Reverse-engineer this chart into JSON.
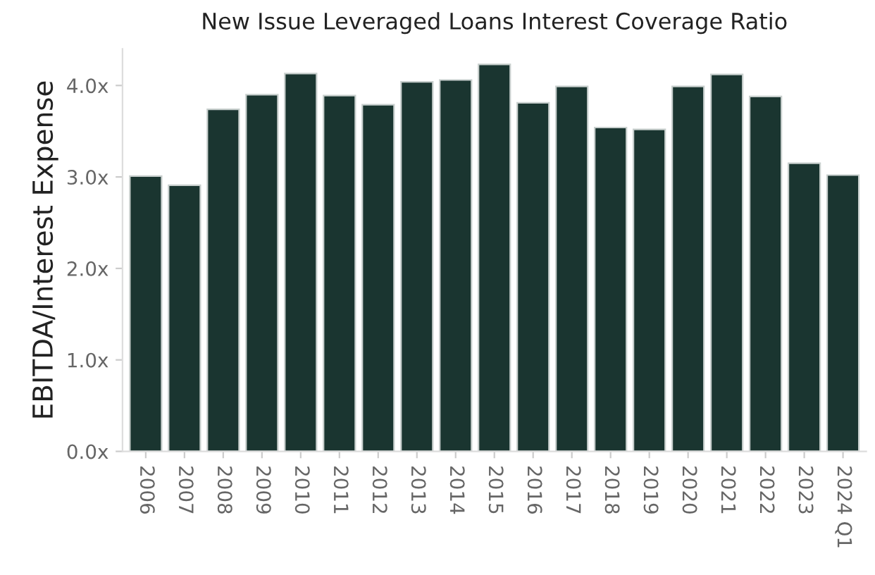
{
  "chart_data": {
    "type": "bar",
    "title": "New Issue Leveraged Loans Interest Coverage Ratio",
    "ylabel": "EBITDA/Interest Expense",
    "categories": [
      "2006",
      "2007",
      "2008",
      "2009",
      "2010",
      "2011",
      "2012",
      "2013",
      "2014",
      "2015",
      "2016",
      "2017",
      "2018",
      "2019",
      "2020",
      "2021",
      "2022",
      "2023",
      "2024 Q1"
    ],
    "values": [
      3.01,
      2.91,
      3.74,
      3.9,
      4.13,
      3.89,
      3.79,
      4.04,
      4.06,
      4.23,
      3.81,
      3.99,
      3.54,
      3.52,
      3.99,
      4.12,
      3.88,
      3.15,
      3.02
    ],
    "color": "#1a3530",
    "ylim": [
      0,
      4.4
    ],
    "yticks": [
      {
        "value": 0,
        "label": "0.0x"
      },
      {
        "value": 1,
        "label": "1.0x"
      },
      {
        "value": 2,
        "label": "2.0x"
      },
      {
        "value": 3,
        "label": "3.0x"
      },
      {
        "value": 4,
        "label": "4.0x"
      }
    ],
    "grid": false,
    "legend": false
  }
}
